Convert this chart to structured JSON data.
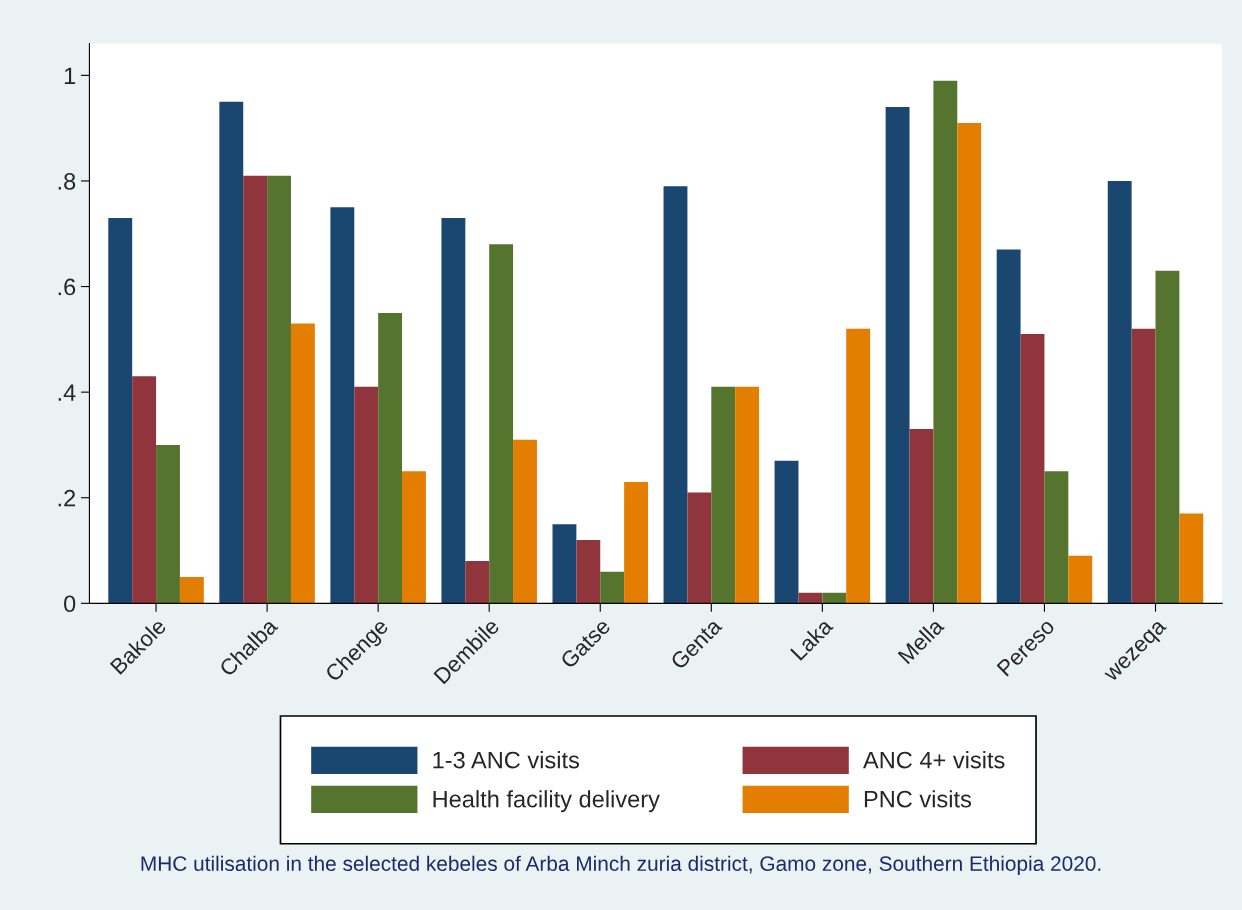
{
  "chart_data": {
    "type": "bar",
    "categories": [
      "Bakole",
      "Chalba",
      "Chenge",
      "Dembile",
      "Gatse",
      "Genta",
      "Laka",
      "Mella",
      "Pereso",
      "wezeqa"
    ],
    "series": [
      {
        "name": "1-3 ANC visits",
        "color": "#1a476f",
        "values": [
          0.73,
          0.95,
          0.75,
          0.73,
          0.15,
          0.79,
          0.27,
          0.94,
          0.67,
          0.8
        ]
      },
      {
        "name": "ANC 4+ visits",
        "color": "#90353b",
        "values": [
          0.43,
          0.81,
          0.41,
          0.08,
          0.12,
          0.21,
          0.02,
          0.33,
          0.51,
          0.52
        ]
      },
      {
        "name": "Health facility delivery",
        "color": "#55752f",
        "values": [
          0.3,
          0.81,
          0.55,
          0.68,
          0.06,
          0.41,
          0.02,
          0.99,
          0.25,
          0.63
        ]
      },
      {
        "name": "PNC visits",
        "color": "#e37e00",
        "values": [
          0.05,
          0.53,
          0.25,
          0.31,
          0.23,
          0.41,
          0.52,
          0.91,
          0.09,
          0.17
        ]
      }
    ],
    "ylim": [
      0,
      1.06
    ],
    "yticks": [
      {
        "value": 0,
        "label": "0"
      },
      {
        "value": 0.2,
        "label": ".2"
      },
      {
        "value": 0.4,
        "label": ".4"
      },
      {
        "value": 0.6,
        "label": ".6"
      },
      {
        "value": 0.8,
        "label": ".8"
      },
      {
        "value": 1,
        "label": "1"
      }
    ],
    "grid": false,
    "legend": "bottom",
    "annotations": [
      "MHC utilisation in the selected kebeles of Arba Minch zuria district, Gamo zone, Southern Ethiopia 2020."
    ]
  }
}
